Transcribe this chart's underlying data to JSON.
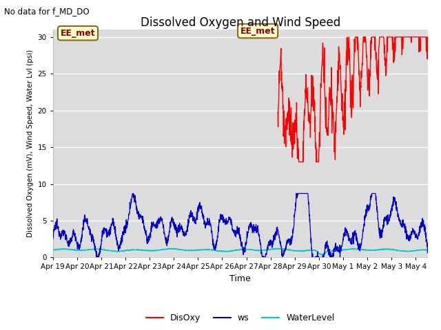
{
  "title": "Dissolved Oxygen and Wind Speed",
  "ylabel": "Dissolved Oxygen (mV), Wind Speed, Water Lvl (psi)",
  "xlabel": "Time",
  "top_left_text": "No data for f_MD_DO",
  "annotation_box": "EE_met",
  "ylim": [
    0,
    31
  ],
  "yticks": [
    0,
    5,
    10,
    15,
    20,
    25,
    30
  ],
  "background_color": "#dcdcdc",
  "line_colors": {
    "DisOxy": "#ff0000",
    "ws": "#0000cc",
    "WaterLevel": "#00cccc"
  },
  "xtick_labels": [
    "Apr 19",
    "Apr 20",
    "Apr 21",
    "Apr 22",
    "Apr 23",
    "Apr 24",
    "Apr 25",
    "Apr 26",
    "Apr 27",
    "Apr 28",
    "Apr 29",
    "Apr 30",
    "May 1",
    "May 2",
    "May 3",
    "May 4"
  ],
  "figsize": [
    6.4,
    4.8
  ],
  "dpi": 100
}
